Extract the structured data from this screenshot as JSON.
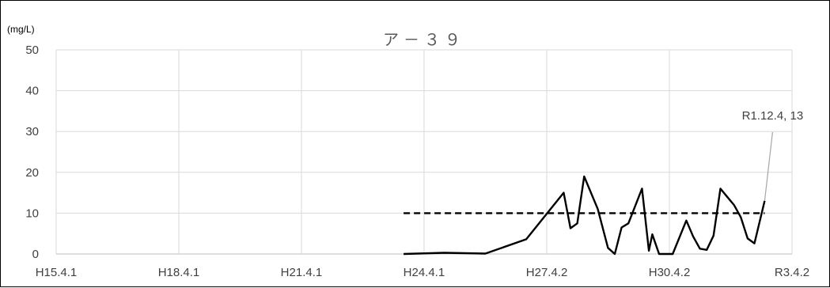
{
  "chart_data": {
    "type": "line",
    "title": "ア－３９",
    "ylabel": "(mg/L)",
    "xlabel": "",
    "ylim": [
      0,
      50
    ],
    "yticks": [
      0,
      10,
      20,
      30,
      40,
      50
    ],
    "x_tick_labels": [
      "H15.4.1",
      "H18.4.1",
      "H21.4.1",
      "H24.4.1",
      "H27.4.2",
      "H30.4.2",
      "R3.4.2"
    ],
    "grid": true,
    "legend": "none",
    "series": [
      {
        "kind": "measured",
        "color": "#000000",
        "style": "solid",
        "points": [
          [
            "H23.10",
            0
          ],
          [
            "H24.10",
            0.3
          ],
          [
            "H25.10",
            0.1
          ],
          [
            "H26.10",
            3.6
          ],
          [
            "H27.9",
            15
          ],
          [
            "H27.11",
            6.3
          ],
          [
            "H28.1",
            7.5
          ],
          [
            "H28.3",
            19
          ],
          [
            "H28.7",
            11
          ],
          [
            "H28.10",
            1.5
          ],
          [
            "H28.12",
            0
          ],
          [
            "H29.2",
            6.5
          ],
          [
            "H29.4",
            7.5
          ],
          [
            "H29.8",
            16
          ],
          [
            "H29.10",
            0.8
          ],
          [
            "H29.11",
            4.8
          ],
          [
            "H30.1",
            0
          ],
          [
            "H30.3",
            0
          ],
          [
            "H30.5",
            0
          ],
          [
            "H30.9",
            8.2
          ],
          [
            "H30.11",
            4.3
          ],
          [
            "H31.1",
            1.3
          ],
          [
            "H31.3",
            1
          ],
          [
            "R1.5",
            4.5
          ],
          [
            "R1.7",
            16
          ],
          [
            "R1.9",
            14
          ],
          [
            "R1.11",
            12
          ],
          [
            "R2.1",
            9
          ],
          [
            "R2.3",
            3.8
          ],
          [
            "R2.5",
            2.6
          ],
          [
            "R2.8",
            13
          ]
        ]
      },
      {
        "kind": "reference",
        "color": "#000000",
        "style": "dashed",
        "points": [
          [
            "H23.10",
            10
          ],
          [
            "R2.8",
            10
          ]
        ]
      }
    ],
    "annotation": {
      "text": "R1.12.4, 13",
      "x": "R2.8",
      "y": 13
    }
  }
}
